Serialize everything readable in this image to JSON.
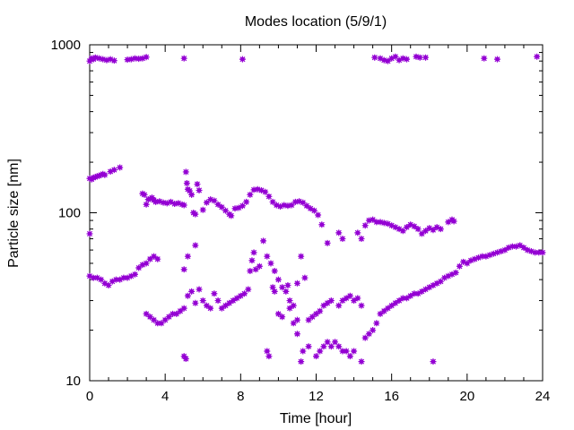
{
  "chart_data": {
    "type": "scatter",
    "title": "Modes location (5/9/1)",
    "xlabel": "Time [hour]",
    "ylabel": "Particle size [nm]",
    "xlim": [
      0,
      24
    ],
    "ylim": [
      10,
      1000
    ],
    "yscale": "log",
    "grid": false,
    "legend": "none",
    "marker_color": "#9400d3",
    "x_ticks": [
      0,
      4,
      8,
      12,
      16,
      20,
      24
    ],
    "x_tick_labels": [
      "0",
      "4",
      "8",
      "12",
      "16",
      "20",
      "24"
    ],
    "y_ticks": [
      10,
      100,
      1000
    ],
    "y_tick_labels": [
      "10",
      "100",
      "1000"
    ],
    "series": [
      {
        "points": [
          [
            0.0,
            800
          ],
          [
            0.1,
            830
          ],
          [
            0.2,
            820
          ],
          [
            0.3,
            840
          ],
          [
            0.5,
            830
          ],
          [
            0.7,
            820
          ],
          [
            0.9,
            810
          ],
          [
            1.1,
            820
          ],
          [
            1.3,
            805
          ],
          [
            2.0,
            815
          ],
          [
            2.2,
            820
          ],
          [
            2.4,
            830
          ],
          [
            2.6,
            825
          ],
          [
            2.8,
            830
          ],
          [
            3.0,
            845
          ],
          [
            5.0,
            830
          ],
          [
            8.1,
            820
          ],
          [
            15.1,
            840
          ],
          [
            15.4,
            830
          ],
          [
            15.6,
            810
          ],
          [
            15.8,
            800
          ],
          [
            16.0,
            830
          ],
          [
            16.2,
            850
          ],
          [
            16.4,
            810
          ],
          [
            16.6,
            830
          ],
          [
            16.8,
            820
          ],
          [
            17.3,
            850
          ],
          [
            17.5,
            840
          ],
          [
            17.8,
            840
          ],
          [
            20.9,
            830
          ],
          [
            21.6,
            820
          ],
          [
            23.7,
            850
          ],
          [
            0.0,
            160
          ],
          [
            0.1,
            158
          ],
          [
            0.2,
            162
          ],
          [
            0.3,
            163
          ],
          [
            0.4,
            165
          ],
          [
            0.5,
            166
          ],
          [
            0.6,
            168
          ],
          [
            0.7,
            170
          ],
          [
            0.8,
            168
          ],
          [
            1.1,
            176
          ],
          [
            1.3,
            180
          ],
          [
            1.6,
            186
          ],
          [
            2.8,
            130
          ],
          [
            2.9,
            128
          ],
          [
            3.0,
            112
          ],
          [
            3.1,
            120
          ],
          [
            3.2,
            121
          ],
          [
            3.3,
            123
          ],
          [
            3.4,
            119
          ],
          [
            3.5,
            116
          ],
          [
            3.7,
            117
          ],
          [
            3.9,
            115
          ],
          [
            4.1,
            114
          ],
          [
            4.3,
            116
          ],
          [
            4.5,
            113
          ],
          [
            4.7,
            114
          ],
          [
            4.9,
            112
          ],
          [
            5.0,
            111
          ],
          [
            5.1,
            175
          ],
          [
            5.15,
            150
          ],
          [
            5.2,
            138
          ],
          [
            5.3,
            135
          ],
          [
            5.4,
            128
          ],
          [
            5.5,
            100
          ],
          [
            5.6,
            98
          ],
          [
            5.7,
            148
          ],
          [
            5.8,
            136
          ],
          [
            6.0,
            104
          ],
          [
            6.2,
            115
          ],
          [
            6.4,
            120
          ],
          [
            6.6,
            118
          ],
          [
            6.8,
            112
          ],
          [
            7.0,
            108
          ],
          [
            7.2,
            103
          ],
          [
            7.4,
            98
          ],
          [
            7.5,
            96
          ],
          [
            7.7,
            106
          ],
          [
            7.9,
            107
          ],
          [
            8.1,
            110
          ],
          [
            8.3,
            116
          ],
          [
            8.5,
            128
          ],
          [
            8.7,
            137
          ],
          [
            8.9,
            138
          ],
          [
            9.1,
            136
          ],
          [
            9.3,
            133
          ],
          [
            9.5,
            125
          ],
          [
            9.7,
            116
          ],
          [
            9.9,
            111
          ],
          [
            10.1,
            109
          ],
          [
            10.3,
            111
          ],
          [
            10.5,
            110
          ],
          [
            10.7,
            111
          ],
          [
            10.9,
            116
          ],
          [
            11.1,
            117
          ],
          [
            11.3,
            115
          ],
          [
            11.5,
            110
          ],
          [
            11.7,
            106
          ],
          [
            11.9,
            103
          ],
          [
            12.1,
            97
          ],
          [
            12.3,
            85
          ],
          [
            12.6,
            66
          ],
          [
            13.2,
            76
          ],
          [
            13.4,
            70
          ],
          [
            14.2,
            76
          ],
          [
            14.4,
            70
          ],
          [
            14.6,
            84
          ],
          [
            14.8,
            90
          ],
          [
            15.0,
            91
          ],
          [
            15.2,
            88
          ],
          [
            15.4,
            88
          ],
          [
            15.6,
            87
          ],
          [
            15.8,
            86
          ],
          [
            16.0,
            84
          ],
          [
            16.2,
            82
          ],
          [
            16.4,
            80
          ],
          [
            16.6,
            78
          ],
          [
            16.8,
            82
          ],
          [
            17.0,
            85
          ],
          [
            17.2,
            83
          ],
          [
            17.4,
            80
          ],
          [
            17.6,
            75
          ],
          [
            17.8,
            78
          ],
          [
            18.0,
            81
          ],
          [
            18.2,
            79
          ],
          [
            18.4,
            82
          ],
          [
            18.6,
            80
          ],
          [
            19.0,
            88
          ],
          [
            19.2,
            91
          ],
          [
            19.3,
            89
          ],
          [
            0.0,
            75
          ],
          [
            0.0,
            42
          ],
          [
            0.2,
            41
          ],
          [
            0.4,
            41
          ],
          [
            0.6,
            40
          ],
          [
            0.8,
            38
          ],
          [
            1.0,
            37
          ],
          [
            1.2,
            39
          ],
          [
            1.4,
            40
          ],
          [
            1.6,
            40
          ],
          [
            1.8,
            41
          ],
          [
            2.0,
            41
          ],
          [
            2.2,
            42
          ],
          [
            2.4,
            43
          ],
          [
            2.6,
            47
          ],
          [
            2.8,
            49
          ],
          [
            3.0,
            50
          ],
          [
            3.2,
            53
          ],
          [
            3.4,
            55
          ],
          [
            3.6,
            53
          ],
          [
            3.0,
            25
          ],
          [
            3.2,
            24
          ],
          [
            3.4,
            23
          ],
          [
            3.6,
            22
          ],
          [
            3.8,
            22
          ],
          [
            4.0,
            23
          ],
          [
            4.2,
            24
          ],
          [
            4.4,
            25
          ],
          [
            4.6,
            25
          ],
          [
            4.8,
            26
          ],
          [
            5.0,
            27
          ],
          [
            5.0,
            14
          ],
          [
            5.1,
            13.5
          ],
          [
            5.0,
            46
          ],
          [
            5.2,
            55
          ],
          [
            5.2,
            32
          ],
          [
            5.4,
            34
          ],
          [
            5.6,
            29
          ],
          [
            5.6,
            64
          ],
          [
            5.8,
            35
          ],
          [
            6.0,
            30
          ],
          [
            6.2,
            28
          ],
          [
            6.4,
            27
          ],
          [
            6.6,
            33
          ],
          [
            6.8,
            30
          ],
          [
            7.0,
            27
          ],
          [
            7.2,
            28
          ],
          [
            7.4,
            29
          ],
          [
            7.6,
            30
          ],
          [
            7.8,
            31
          ],
          [
            8.0,
            32
          ],
          [
            8.2,
            33
          ],
          [
            8.4,
            35
          ],
          [
            8.5,
            45
          ],
          [
            8.6,
            52
          ],
          [
            8.7,
            58
          ],
          [
            8.8,
            46
          ],
          [
            9.0,
            48
          ],
          [
            9.2,
            68
          ],
          [
            9.4,
            55
          ],
          [
            9.6,
            50
          ],
          [
            9.8,
            45
          ],
          [
            10.0,
            40
          ],
          [
            10.2,
            36
          ],
          [
            10.4,
            34
          ],
          [
            10.6,
            30
          ],
          [
            10.8,
            28
          ],
          [
            11.0,
            38
          ],
          [
            11.2,
            55
          ],
          [
            11.4,
            41
          ],
          [
            11.6,
            23
          ],
          [
            11.8,
            24
          ],
          [
            12.0,
            25
          ],
          [
            12.2,
            26
          ],
          [
            12.4,
            28
          ],
          [
            12.6,
            29
          ],
          [
            12.8,
            30
          ],
          [
            9.4,
            15
          ],
          [
            9.5,
            14
          ],
          [
            9.7,
            36
          ],
          [
            9.8,
            34
          ],
          [
            10.0,
            25
          ],
          [
            10.2,
            24
          ],
          [
            10.5,
            37
          ],
          [
            10.6,
            27
          ],
          [
            10.8,
            22
          ],
          [
            11.0,
            23
          ],
          [
            11.0,
            19
          ],
          [
            11.2,
            13
          ],
          [
            11.3,
            15
          ],
          [
            11.6,
            16
          ],
          [
            12.0,
            14
          ],
          [
            12.2,
            15
          ],
          [
            12.4,
            16
          ],
          [
            12.6,
            17
          ],
          [
            12.8,
            16
          ],
          [
            13.0,
            17
          ],
          [
            13.2,
            16
          ],
          [
            13.4,
            15
          ],
          [
            13.6,
            15
          ],
          [
            13.8,
            14
          ],
          [
            14.0,
            15
          ],
          [
            13.2,
            28
          ],
          [
            13.4,
            30
          ],
          [
            13.6,
            31
          ],
          [
            13.8,
            32
          ],
          [
            14.0,
            30
          ],
          [
            14.2,
            31
          ],
          [
            14.4,
            28
          ],
          [
            14.4,
            13
          ],
          [
            14.6,
            18
          ],
          [
            14.8,
            19
          ],
          [
            15.0,
            20
          ],
          [
            15.2,
            22
          ],
          [
            15.4,
            25
          ],
          [
            15.6,
            26
          ],
          [
            15.8,
            27
          ],
          [
            16.0,
            28
          ],
          [
            16.2,
            29
          ],
          [
            16.4,
            30
          ],
          [
            16.6,
            31
          ],
          [
            16.8,
            31
          ],
          [
            17.0,
            32
          ],
          [
            17.2,
            33
          ],
          [
            17.4,
            33
          ],
          [
            17.6,
            34
          ],
          [
            17.8,
            35
          ],
          [
            18.0,
            36
          ],
          [
            18.2,
            37
          ],
          [
            18.2,
            13
          ],
          [
            18.4,
            38
          ],
          [
            18.6,
            39
          ],
          [
            18.8,
            41
          ],
          [
            19.0,
            42
          ],
          [
            19.2,
            43
          ],
          [
            19.4,
            44
          ],
          [
            19.6,
            48
          ],
          [
            19.8,
            51
          ],
          [
            20.0,
            50
          ],
          [
            20.2,
            52
          ],
          [
            20.4,
            53
          ],
          [
            20.6,
            54
          ],
          [
            20.8,
            55
          ],
          [
            21.0,
            55
          ],
          [
            21.2,
            56
          ],
          [
            21.4,
            57
          ],
          [
            21.6,
            58
          ],
          [
            21.8,
            59
          ],
          [
            22.0,
            60
          ],
          [
            22.2,
            62
          ],
          [
            22.4,
            63
          ],
          [
            22.6,
            63
          ],
          [
            22.8,
            64
          ],
          [
            23.0,
            62
          ],
          [
            23.2,
            60
          ],
          [
            23.4,
            59
          ],
          [
            23.6,
            58
          ],
          [
            23.8,
            58
          ],
          [
            24.0,
            58
          ]
        ]
      }
    ]
  }
}
